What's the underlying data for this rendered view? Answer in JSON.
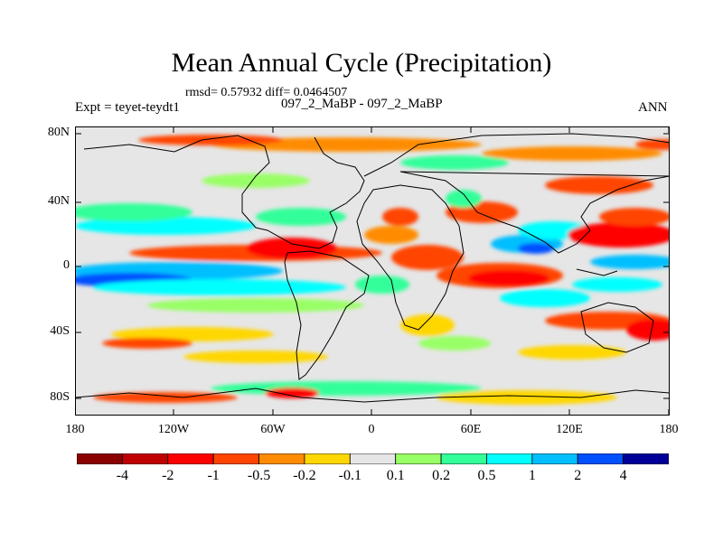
{
  "title": "Mean Annual Cycle (Precipitation)",
  "stats_line": "rmsd= 0.57932 diff= 0.0464507",
  "expt_label": "Expt = teyet-teydt1",
  "runs_label": "097_2_MaBP - 097_2_MaBP",
  "season": "ANN",
  "y_ticks": [
    "80N",
    "40N",
    "0",
    "40S",
    "80S"
  ],
  "x_ticks": [
    "180",
    "120W",
    "60W",
    "0",
    "60E",
    "120E",
    "180"
  ],
  "colorbar": {
    "labels": [
      "-4",
      "-2",
      "-1",
      "-0.5",
      "-0.2",
      "-0.1",
      "0.1",
      "0.2",
      "0.5",
      "1",
      "2",
      "4"
    ],
    "colors": [
      "#8b0000",
      "#c00000",
      "#ff0000",
      "#ff4500",
      "#ff8c00",
      "#ffd700",
      "#e6e6e6",
      "#99ff66",
      "#33ff99",
      "#00ffff",
      "#00bfff",
      "#0050ff",
      "#000099"
    ]
  },
  "map_background": "#e6e6e6"
}
